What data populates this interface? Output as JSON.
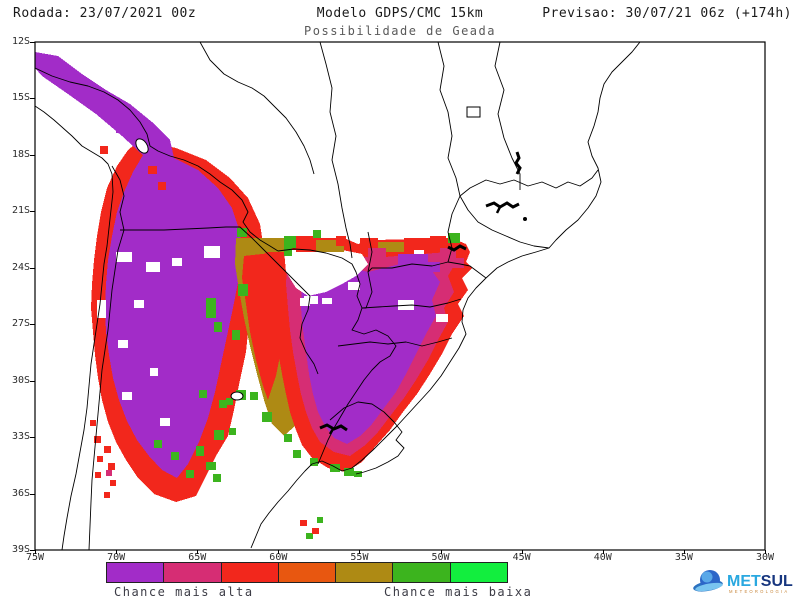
{
  "header": {
    "run_label": "Rodada: 23/07/2021 00z",
    "model_label": "Modelo GDPS/CMC 15km",
    "forecast_label": "Previsao: 30/07/21 06z (+174h)",
    "subtitle": "Possibilidade de Geada"
  },
  "axes": {
    "lat_ticks": [
      "12S",
      "15S",
      "18S",
      "21S",
      "24S",
      "27S",
      "30S",
      "33S",
      "36S",
      "39S"
    ],
    "lon_ticks": [
      "75W",
      "70W",
      "65W",
      "60W",
      "55W",
      "50W",
      "45W",
      "40W",
      "35W",
      "30W"
    ]
  },
  "palette": {
    "purple": "#A22CC8",
    "pink": "#D62D74",
    "red": "#F2271C",
    "orange_red": "#E85710",
    "olive": "#AE8A14",
    "green": "#3CB41E",
    "bright_green": "#12EE3E",
    "white": "#FFFFFF",
    "border": "#000000"
  },
  "legend": {
    "scale_colors": [
      "#A22CC8",
      "#D62D74",
      "#F2271C",
      "#E85710",
      "#AE8A14",
      "#3CB41E",
      "#12EE3E"
    ],
    "label_left": "Chance mais alta",
    "label_right": "Chance mais baixa"
  },
  "logo": {
    "brand_part1": "MET",
    "brand_part2": "SUL",
    "tagline": "METEOROLOGIA",
    "brand_color1": "#29A8E0",
    "brand_color2": "#17367F",
    "tagline_color": "#C8873C"
  }
}
